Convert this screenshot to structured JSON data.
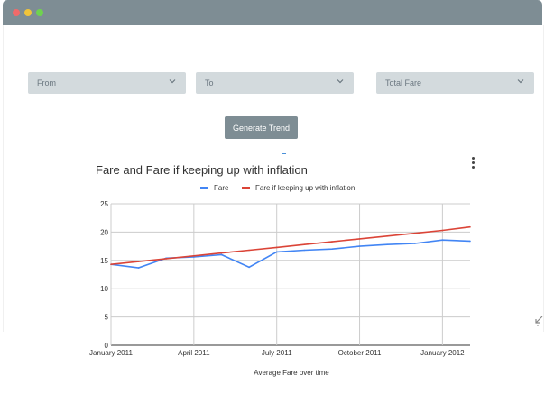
{
  "window": {
    "controls": [
      "close",
      "minimize",
      "maximize"
    ]
  },
  "filters": {
    "from_placeholder": "From",
    "to_placeholder": "To",
    "total_fare_placeholder": "Total Fare",
    "generate_label": "Generate Trend"
  },
  "colors": {
    "titlebar": "#7e8d94",
    "select_bg": "#d3dadd",
    "fare": "#4285f4",
    "inflation": "#db4437"
  },
  "chart_data": {
    "type": "line",
    "title": "Fare and Fare if keeping up with inflation",
    "xlabel": "Average Fare over time",
    "ylabel": "",
    "x_ticks": [
      "January 2011",
      "April 2011",
      "July 2011",
      "October 2011",
      "January 2012"
    ],
    "y_ticks": [
      "0",
      "5",
      "10",
      "15",
      "20",
      "25"
    ],
    "ylim": [
      0,
      25
    ],
    "x": [
      "2011-01",
      "2011-02",
      "2011-03",
      "2011-04",
      "2011-05",
      "2011-06",
      "2011-07",
      "2011-08",
      "2011-09",
      "2011-10",
      "2011-11",
      "2011-12",
      "2012-01",
      "2012-02"
    ],
    "x_range": [
      "2011-01",
      "2012-02"
    ],
    "legend": "top",
    "grid": true,
    "series": [
      {
        "name": "Fare",
        "color": "#4285f4",
        "values": [
          14.3,
          13.7,
          15.4,
          15.6,
          16.0,
          13.8,
          16.5,
          16.8,
          17.0,
          17.5,
          17.8,
          18.0,
          18.6,
          18.4
        ]
      },
      {
        "name": "Fare if keeping up with inflation",
        "color": "#db4437",
        "values": [
          14.3,
          14.8,
          15.3,
          15.8,
          16.3,
          16.8,
          17.3,
          17.8,
          18.3,
          18.8,
          19.3,
          19.8,
          20.3,
          20.9
        ]
      }
    ]
  }
}
